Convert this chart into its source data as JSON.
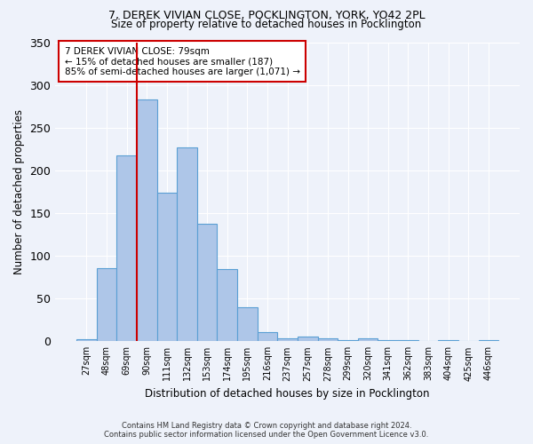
{
  "title1": "7, DEREK VIVIAN CLOSE, POCKLINGTON, YORK, YO42 2PL",
  "title2": "Size of property relative to detached houses in Pocklington",
  "xlabel": "Distribution of detached houses by size in Pocklington",
  "ylabel": "Number of detached properties",
  "footer1": "Contains HM Land Registry data © Crown copyright and database right 2024.",
  "footer2": "Contains public sector information licensed under the Open Government Licence v3.0.",
  "annotation_line1": "7 DEREK VIVIAN CLOSE: 79sqm",
  "annotation_line2": "← 15% of detached houses are smaller (187)",
  "annotation_line3": "85% of semi-detached houses are larger (1,071) →",
  "categories": [
    "27sqm",
    "48sqm",
    "69sqm",
    "90sqm",
    "111sqm",
    "132sqm",
    "153sqm",
    "174sqm",
    "195sqm",
    "216sqm",
    "237sqm",
    "257sqm",
    "278sqm",
    "299sqm",
    "320sqm",
    "341sqm",
    "362sqm",
    "383sqm",
    "404sqm",
    "425sqm",
    "446sqm"
  ],
  "values": [
    2,
    86,
    217,
    283,
    174,
    227,
    137,
    85,
    40,
    11,
    3,
    5,
    3,
    1,
    3,
    1,
    1,
    0,
    1,
    0,
    1
  ],
  "bar_color": "#aec6e8",
  "bar_edge_color": "#5a9fd4",
  "vline_color": "#cc0000",
  "vline_x": 2.5,
  "background_color": "#eef2fa",
  "ylim": [
    0,
    350
  ],
  "yticks": [
    0,
    50,
    100,
    150,
    200,
    250,
    300,
    350
  ]
}
